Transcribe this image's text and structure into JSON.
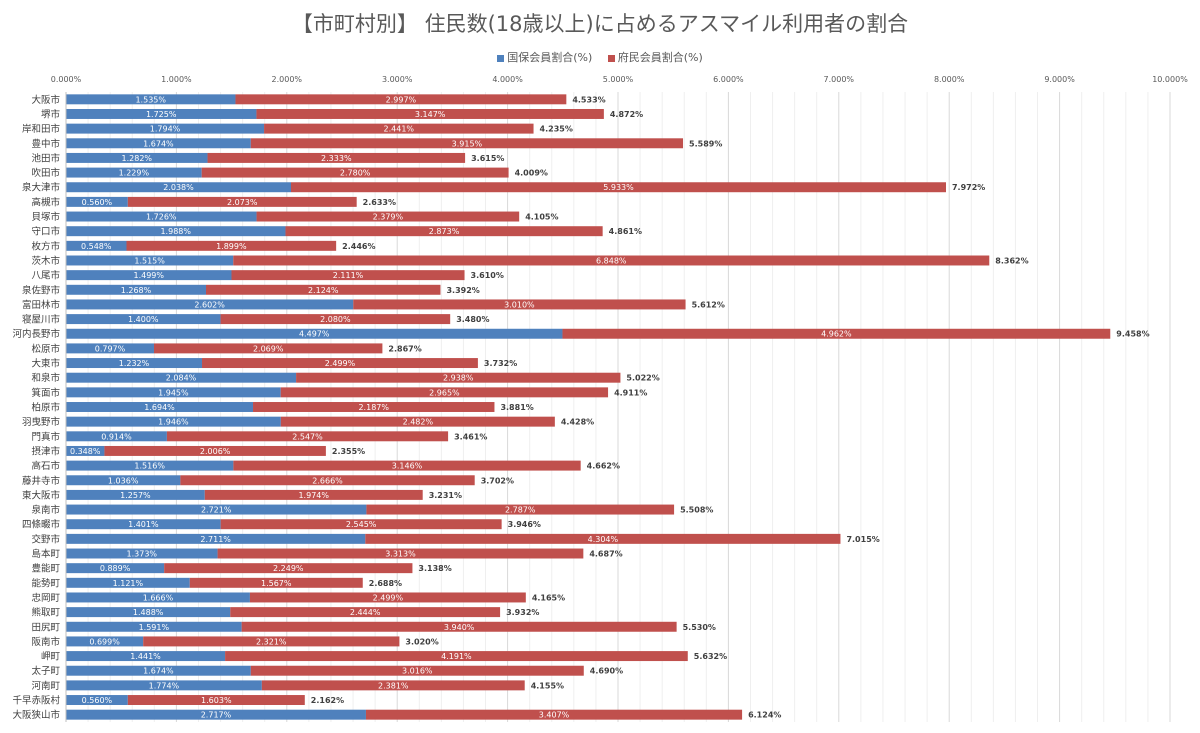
{
  "chart_data": {
    "type": "bar",
    "orientation": "horizontal",
    "stacked": true,
    "title": "【市町村別】 住民数(18歳以上)に占めるアスマイル利用者の割合",
    "legend_position": "top",
    "grid": true,
    "xlim": [
      0,
      10
    ],
    "x_ticks": [
      "0.000%",
      "1.000%",
      "2.000%",
      "3.000%",
      "4.000%",
      "5.000%",
      "6.000%",
      "7.000%",
      "8.000%",
      "9.000%",
      "10.000%"
    ],
    "categories": [
      "大阪市",
      "堺市",
      "岸和田市",
      "豊中市",
      "池田市",
      "吹田市",
      "泉大津市",
      "高槻市",
      "貝塚市",
      "守口市",
      "枚方市",
      "茨木市",
      "八尾市",
      "泉佐野市",
      "富田林市",
      "寝屋川市",
      "河内長野市",
      "松原市",
      "大東市",
      "和泉市",
      "箕面市",
      "柏原市",
      "羽曳野市",
      "門真市",
      "摂津市",
      "高石市",
      "藤井寺市",
      "東大阪市",
      "泉南市",
      "四條畷市",
      "交野市",
      "島本町",
      "豊能町",
      "能勢町",
      "忠岡町",
      "熊取町",
      "田尻町",
      "阪南市",
      "岬町",
      "太子町",
      "河南町",
      "千早赤阪村",
      "大阪狭山市"
    ],
    "series": [
      {
        "name": "国保会員割合(%)",
        "color": "#4f81bd",
        "values": [
          1.535,
          1.725,
          1.794,
          1.674,
          1.282,
          1.229,
          2.038,
          0.56,
          1.726,
          1.988,
          0.548,
          1.515,
          1.499,
          1.268,
          2.602,
          1.4,
          4.497,
          0.797,
          1.232,
          2.084,
          1.945,
          1.694,
          1.946,
          0.914,
          0.348,
          1.516,
          1.036,
          1.257,
          2.721,
          1.401,
          2.711,
          1.373,
          0.889,
          1.121,
          1.666,
          1.488,
          1.591,
          0.699,
          1.441,
          1.674,
          1.774,
          0.56,
          2.717
        ]
      },
      {
        "name": "府民会員割合(%)",
        "color": "#c0504d",
        "values": [
          2.997,
          3.147,
          2.441,
          3.915,
          2.333,
          2.78,
          5.933,
          2.073,
          2.379,
          2.873,
          1.899,
          6.848,
          2.111,
          2.124,
          3.01,
          2.08,
          4.962,
          2.069,
          2.499,
          2.938,
          2.965,
          2.187,
          2.482,
          2.547,
          2.006,
          3.146,
          2.666,
          1.974,
          2.787,
          2.545,
          4.304,
          3.313,
          2.249,
          1.567,
          2.499,
          2.444,
          3.94,
          2.321,
          4.191,
          3.016,
          2.381,
          1.603,
          3.407
        ]
      }
    ],
    "totals": [
      4.533,
      4.872,
      4.235,
      5.589,
      3.615,
      4.009,
      7.972,
      2.633,
      4.105,
      4.861,
      2.446,
      8.362,
      3.61,
      3.392,
      5.612,
      3.48,
      9.458,
      2.867,
      3.732,
      5.022,
      4.911,
      3.881,
      4.428,
      3.461,
      2.355,
      4.662,
      3.702,
      3.231,
      5.508,
      3.946,
      7.015,
      4.687,
      3.138,
      2.688,
      4.165,
      3.932,
      5.53,
      3.02,
      5.632,
      4.69,
      4.155,
      2.162,
      6.124
    ]
  }
}
